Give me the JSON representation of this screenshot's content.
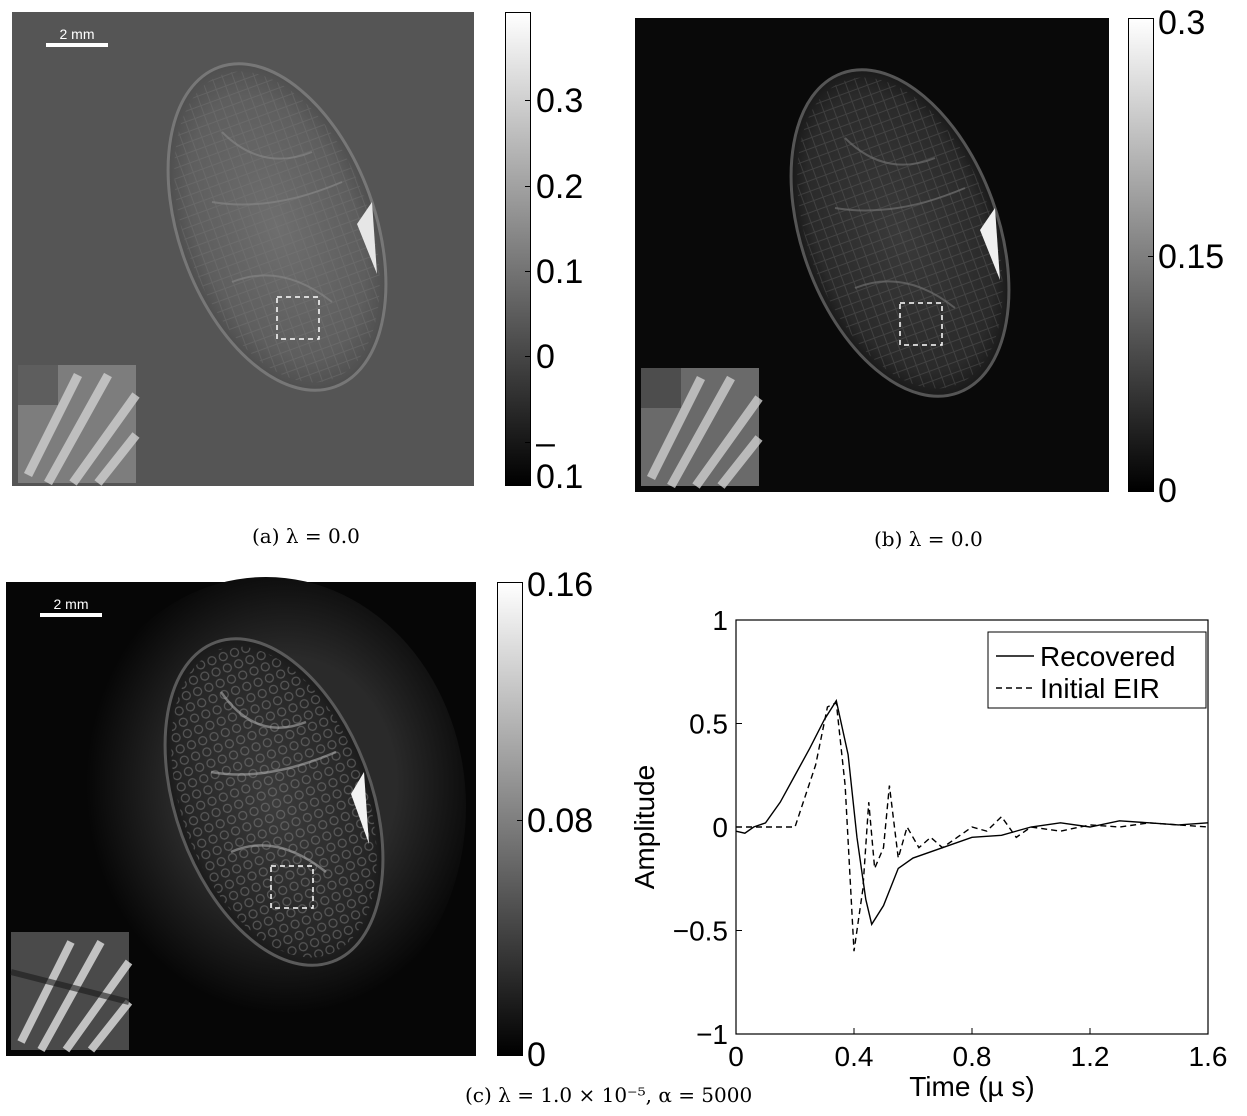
{
  "panels": [
    {
      "scalebar_label": "2 mm",
      "colorbar_ticks": [
        "0.3",
        "0.2",
        "0.1",
        "0",
        "–0.1"
      ],
      "caption": "(a) λ = 0.0"
    },
    {
      "colorbar_ticks": [
        "0.3",
        "0.15",
        "0"
      ],
      "caption": "(b) λ = 0.0"
    },
    {
      "scalebar_label": "2 mm",
      "colorbar_ticks": [
        "0.16",
        "0.08",
        "0"
      ]
    }
  ],
  "bottom_caption": "(c) λ = 1.0 × 10⁻⁵, α = 5000",
  "chart_data": {
    "type": "line",
    "xlabel": "Time (µ s)",
    "ylabel": "Amplitude",
    "xlim": [
      0,
      1.6
    ],
    "ylim": [
      -1,
      1
    ],
    "xticks": [
      "0",
      "0.4",
      "0.8",
      "1.2",
      "1.6"
    ],
    "yticks": [
      "1",
      "0.5",
      "0",
      "−0.5",
      "−1"
    ],
    "legend_position": "top-right",
    "series": [
      {
        "name": "Recovered",
        "style": "solid",
        "x": [
          0.0,
          0.03,
          0.06,
          0.1,
          0.15,
          0.2,
          0.25,
          0.3,
          0.34,
          0.38,
          0.41,
          0.44,
          0.46,
          0.5,
          0.55,
          0.6,
          0.7,
          0.8,
          0.9,
          1.0,
          1.1,
          1.2,
          1.3,
          1.4,
          1.5,
          1.6
        ],
        "y": [
          -0.02,
          -0.03,
          0.0,
          0.02,
          0.12,
          0.25,
          0.38,
          0.52,
          0.61,
          0.35,
          -0.05,
          -0.35,
          -0.47,
          -0.38,
          -0.2,
          -0.15,
          -0.1,
          -0.05,
          -0.04,
          0.0,
          0.02,
          0.0,
          0.03,
          0.02,
          0.01,
          0.02
        ]
      },
      {
        "name": "Initial EIR",
        "style": "dashed",
        "x": [
          0.0,
          0.1,
          0.2,
          0.27,
          0.31,
          0.34,
          0.37,
          0.4,
          0.43,
          0.45,
          0.47,
          0.5,
          0.52,
          0.55,
          0.58,
          0.62,
          0.66,
          0.7,
          0.75,
          0.8,
          0.85,
          0.9,
          0.95,
          1.0,
          1.1,
          1.2,
          1.3,
          1.4,
          1.5,
          1.6
        ],
        "y": [
          0.0,
          0.0,
          0.0,
          0.3,
          0.58,
          0.6,
          0.2,
          -0.6,
          -0.3,
          0.12,
          -0.2,
          -0.1,
          0.2,
          -0.15,
          0.0,
          -0.1,
          -0.05,
          -0.1,
          -0.05,
          0.0,
          -0.02,
          0.05,
          -0.05,
          0.0,
          -0.02,
          0.01,
          0.0,
          0.02,
          0.01,
          0.0
        ]
      }
    ]
  },
  "colors": {
    "panel_a_background": "#555555",
    "panel_b_background": "#090909",
    "panel_c_background": "#060606"
  }
}
